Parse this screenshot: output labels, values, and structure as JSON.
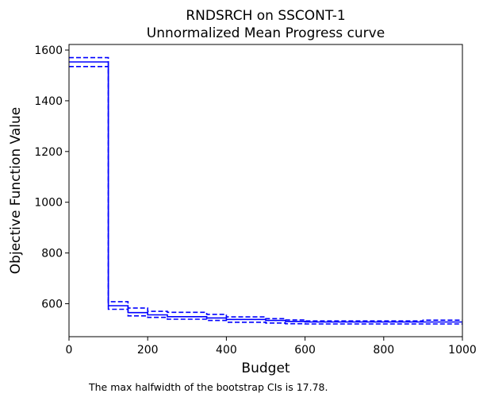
{
  "chart_data": {
    "type": "line",
    "step": true,
    "title": "RNDSRCH on SSCONT-1",
    "subtitle": "Unnormalized Mean Progress curve",
    "xlabel": "Budget",
    "ylabel": "Objective Function Value",
    "xlim": [
      0,
      1000
    ],
    "ylim": [
      470,
      1622
    ],
    "xticks": [
      "0",
      "200",
      "400",
      "600",
      "800",
      "1000"
    ],
    "yticks": [
      "600",
      "800",
      "1000",
      "1200",
      "1400",
      "1600"
    ],
    "grid": false,
    "color": "#0000ff",
    "series": [
      {
        "role": "mean",
        "style": "solid",
        "x": [
          0,
          100,
          100,
          150,
          150,
          200,
          200,
          250,
          250,
          350,
          350,
          400,
          400,
          500,
          500,
          550,
          550,
          600,
          600,
          1000
        ],
        "y": [
          1553,
          1553,
          592,
          592,
          565,
          565,
          556,
          556,
          549,
          549,
          544,
          544,
          538,
          538,
          534,
          534,
          530,
          530,
          528,
          528
        ]
      },
      {
        "role": "ci-upper",
        "style": "dashed",
        "x": [
          0,
          100,
          100,
          150,
          150,
          200,
          200,
          250,
          250,
          350,
          350,
          400,
          400,
          500,
          500,
          550,
          550,
          600,
          600,
          900,
          900,
          1000
        ],
        "y": [
          1570,
          1570,
          608,
          608,
          583,
          583,
          570,
          570,
          566,
          566,
          558,
          558,
          548,
          548,
          541,
          541,
          536,
          536,
          532,
          532,
          535,
          535
        ]
      },
      {
        "role": "ci-lower",
        "style": "dashed",
        "x": [
          0,
          100,
          100,
          150,
          150,
          200,
          200,
          250,
          250,
          350,
          350,
          400,
          400,
          500,
          500,
          550,
          550,
          600,
          600,
          1000
        ],
        "y": [
          1535,
          1535,
          578,
          578,
          552,
          552,
          546,
          546,
          539,
          539,
          534,
          534,
          527,
          527,
          524,
          524,
          521,
          521,
          520,
          520
        ]
      }
    ]
  },
  "footnote": "The max halfwidth of the bootstrap CIs is 17.78."
}
